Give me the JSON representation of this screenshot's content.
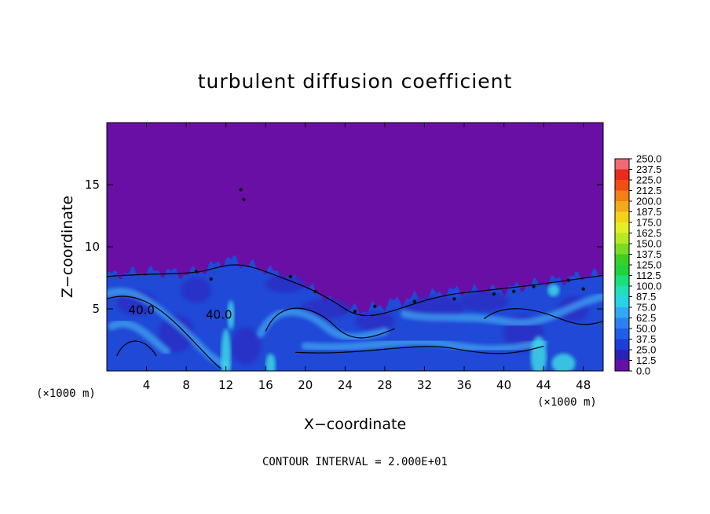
{
  "chart_data": {
    "type": "heatmap",
    "title": "turbulent diffusion coefficient",
    "xlabel": "X−coordinate",
    "ylabel": "Z−coordinate",
    "x_unit": "(×1000 m)",
    "z_unit": "(×1000 m)",
    "xlim": [
      0,
      50
    ],
    "ylim": [
      0,
      20
    ],
    "x_ticks": [
      4,
      8,
      12,
      16,
      20,
      24,
      28,
      32,
      36,
      40,
      44,
      48
    ],
    "y_ticks": [
      5,
      10,
      15
    ],
    "contour_note": "CONTOUR INTERVAL = 2.000E+01",
    "contour_labels": [
      {
        "text": "40.0",
        "x": 3.5,
        "z": 4.6
      },
      {
        "text": "40.0",
        "x": 11.3,
        "z": 4.2
      }
    ],
    "colorbar": {
      "levels": [
        "0.0",
        "12.5",
        "25.0",
        "37.5",
        "50.0",
        "62.5",
        "75.0",
        "87.5",
        "100.0",
        "112.5",
        "125.0",
        "137.5",
        "150.0",
        "162.5",
        "175.0",
        "187.5",
        "200.0",
        "212.5",
        "225.0",
        "237.5",
        "250.0"
      ],
      "colors": [
        "#6a0fa5",
        "#2b23b8",
        "#1c3ed8",
        "#1f5ee8",
        "#2c80f2",
        "#30a9f4",
        "#27d2e6",
        "#1fe0b8",
        "#19e07a",
        "#1fd33c",
        "#3ccf22",
        "#77de23",
        "#b6ea20",
        "#e4ee22",
        "#f4d21c",
        "#f2a91a",
        "#f37e14",
        "#f24d12",
        "#ea2a1c",
        "#f06a74"
      ]
    },
    "field_profile": {
      "x": [
        0,
        2,
        4,
        6,
        8,
        10,
        11,
        12,
        13,
        14,
        16,
        18,
        20,
        22,
        24,
        26,
        28,
        30,
        32,
        34,
        36,
        38,
        40,
        42,
        44,
        46,
        48,
        50
      ],
      "top_z": [
        7.7,
        7.9,
        8.0,
        8.0,
        7.8,
        8.2,
        8.6,
        9.0,
        8.9,
        8.6,
        8.2,
        7.6,
        6.9,
        5.9,
        5.0,
        4.9,
        5.4,
        5.8,
        6.0,
        6.4,
        6.5,
        6.4,
        6.6,
        6.8,
        7.2,
        7.4,
        7.7,
        7.8
      ]
    }
  }
}
